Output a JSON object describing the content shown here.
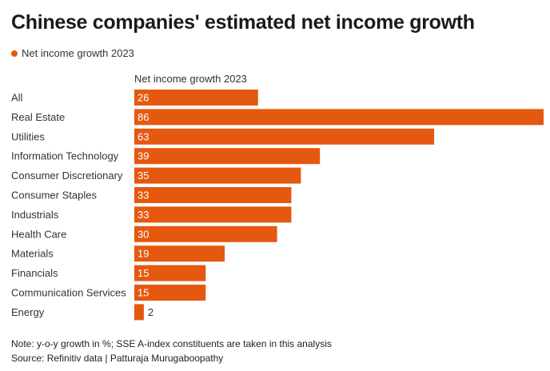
{
  "title": "Chinese companies' estimated net income growth",
  "legend": {
    "label": "Net income growth 2023",
    "color": "#e5580f"
  },
  "column_header": "Net income growth 2023",
  "note": "Note: y-o-y growth in %; SSE A-index constituents are taken in this analysis",
  "source": "Source: Refinitiv data | Patturaja Murugaboopathy",
  "chart_data": {
    "type": "bar",
    "orientation": "horizontal",
    "title": "Chinese companies' estimated net income growth",
    "xlabel": "Net income growth 2023",
    "ylabel": "",
    "categories": [
      "All",
      "Real Estate",
      "Utilities",
      "Information Technology",
      "Consumer Discretionary",
      "Consumer Staples",
      "Industrials",
      "Health Care",
      "Materials",
      "Financials",
      "Communication Services",
      "Energy"
    ],
    "series": [
      {
        "name": "Net income growth 2023",
        "color": "#e5580f",
        "values": [
          26,
          86,
          63,
          39,
          35,
          33,
          33,
          30,
          19,
          15,
          15,
          2
        ]
      }
    ],
    "xlim": [
      0,
      86
    ],
    "grid": false,
    "legend_position": "top-left",
    "data_labels": true
  }
}
